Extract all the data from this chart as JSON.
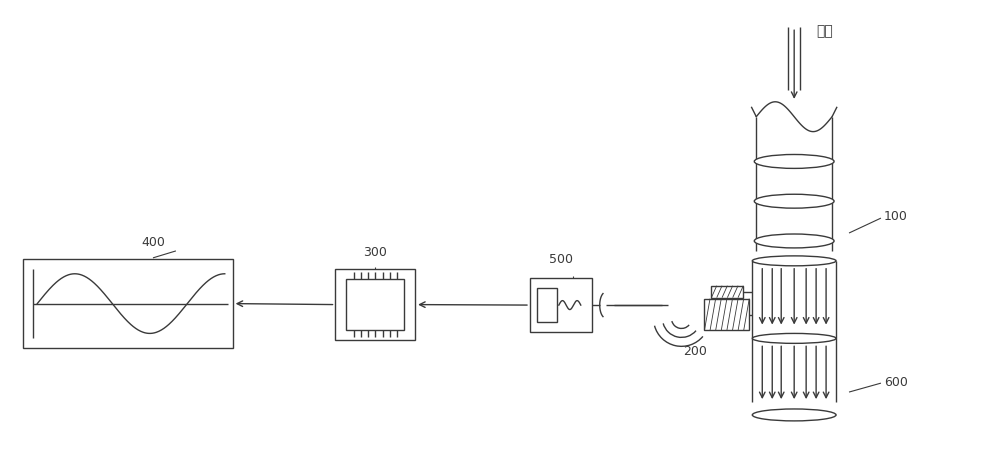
{
  "bg_color": "#ffffff",
  "line_color": "#3a3a3a",
  "label_color": "#3a3a3a",
  "label_fontsize": 9,
  "fig_width": 10.0,
  "fig_height": 4.71,
  "dpi": 100,
  "labels": {
    "exhaust": "排气",
    "num_100": "100",
    "num_200": "200",
    "num_300": "300",
    "num_400": "400",
    "num_500": "500",
    "num_600": "600"
  }
}
